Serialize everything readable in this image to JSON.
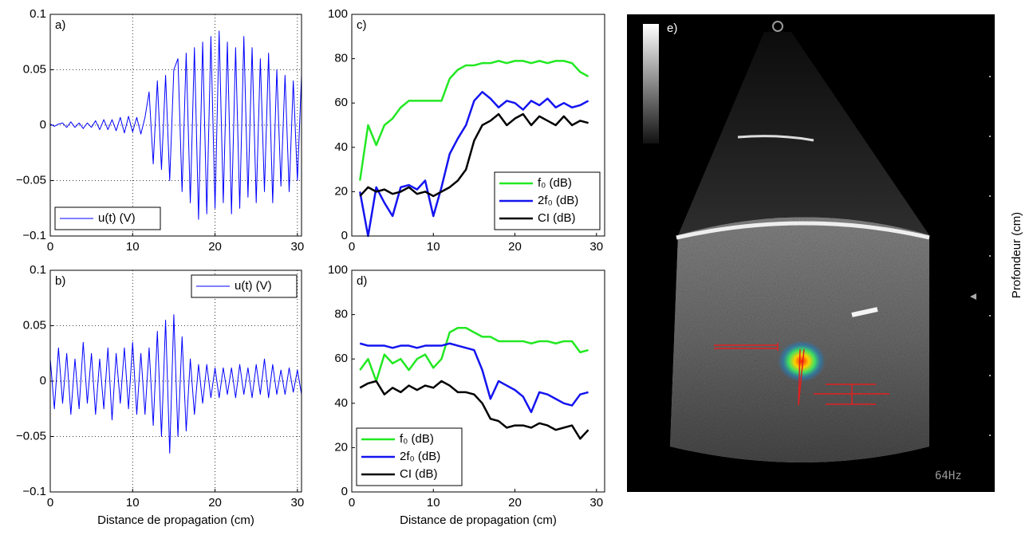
{
  "chart_data": [
    {
      "type": "signal",
      "panel_label": "a)",
      "legend": "lower left",
      "grid": true,
      "xlim": [
        0,
        30.5
      ],
      "xticks": [
        0,
        10,
        20,
        30
      ],
      "ylim": [
        -0.1,
        0.1
      ],
      "yticks": [
        {
          "value": -0.1,
          "label": "−0.1"
        },
        {
          "value": -0.05,
          "label": "−0.05"
        },
        0,
        0.05,
        0.1
      ],
      "x": [
        0,
        0.5,
        1,
        1.5,
        2,
        2.5,
        3,
        3.5,
        4,
        4.5,
        5,
        5.5,
        6,
        6.5,
        7,
        7.5,
        8,
        8.5,
        9,
        9.5,
        10,
        10.5,
        11,
        11.5,
        12,
        12.5,
        13,
        13.5,
        14,
        14.5,
        15,
        15.5,
        16,
        16.5,
        17,
        17.5,
        18,
        18.5,
        19,
        19.5,
        20,
        20.5,
        21,
        21.5,
        22,
        22.5,
        23,
        23.5,
        24,
        24.5,
        25,
        25.5,
        26,
        26.5,
        27,
        27.5,
        28,
        28.5,
        29,
        29.5,
        30,
        30.5
      ],
      "series": [
        {
          "name": "u(t) (V)",
          "color": "#0000ff",
          "values": [
            0.001,
            -0.001,
            0.001,
            0.002,
            -0.002,
            0.003,
            -0.002,
            0.002,
            -0.003,
            0.002,
            -0.002,
            0.004,
            -0.004,
            0.005,
            -0.004,
            0.005,
            -0.005,
            0.007,
            -0.007,
            0.008,
            -0.006,
            0.007,
            -0.008,
            0.007,
            0.03,
            -0.035,
            0.04,
            -0.04,
            0.045,
            -0.05,
            0.05,
            0.06,
            -0.06,
            0.065,
            -0.07,
            0.07,
            -0.085,
            0.075,
            -0.08,
            0.08,
            -0.075,
            0.085,
            -0.07,
            0.075,
            -0.08,
            0.07,
            -0.075,
            0.08,
            -0.065,
            0.07,
            -0.07,
            0.06,
            -0.06,
            0.065,
            -0.07,
            0.05,
            -0.055,
            0.045,
            -0.06,
            0.04,
            -0.05,
            0.045
          ]
        }
      ]
    },
    {
      "type": "signal",
      "panel_label": "b)",
      "legend": "upper right",
      "grid": true,
      "xlabel": "Distance de propagation (cm)",
      "xlim": [
        0,
        30.5
      ],
      "xticks": [
        0,
        10,
        20,
        30
      ],
      "ylim": [
        -0.1,
        0.1
      ],
      "yticks": [
        {
          "value": -0.1,
          "label": "−0.1"
        },
        {
          "value": -0.05,
          "label": "−0.05"
        },
        0,
        0.05,
        0.1
      ],
      "x": [
        0,
        0.5,
        1,
        1.5,
        2,
        2.5,
        3,
        3.5,
        4,
        4.5,
        5,
        5.5,
        6,
        6.5,
        7,
        7.5,
        8,
        8.5,
        9,
        9.5,
        10,
        10.5,
        11,
        11.5,
        12,
        12.5,
        13,
        13.5,
        14,
        14.5,
        15,
        15.5,
        16,
        16.5,
        17,
        17.5,
        18,
        18.5,
        19,
        19.5,
        20,
        20.5,
        21,
        21.5,
        22,
        22.5,
        23,
        23.5,
        24,
        24.5,
        25,
        25.5,
        26,
        26.5,
        27,
        27.5,
        28,
        28.5,
        29,
        29.5,
        30,
        30.5
      ],
      "series": [
        {
          "name": "u(t) (V)",
          "color": "#0000ff",
          "values": [
            0.02,
            -0.025,
            0.03,
            -0.02,
            0.025,
            -0.03,
            0.02,
            -0.025,
            0.035,
            -0.02,
            0.025,
            -0.03,
            0.02,
            -0.025,
            0.03,
            -0.035,
            0.025,
            -0.02,
            0.03,
            -0.025,
            0.035,
            -0.03,
            0.025,
            -0.03,
            0.03,
            -0.04,
            0.045,
            -0.05,
            0.055,
            -0.065,
            0.06,
            -0.05,
            0.04,
            -0.045,
            0.02,
            -0.03,
            0.015,
            -0.02,
            0.015,
            -0.015,
            0.012,
            -0.015,
            0.012,
            -0.012,
            0.012,
            -0.015,
            0.015,
            -0.012,
            0.012,
            -0.015,
            0.015,
            -0.012,
            0.02,
            -0.015,
            0.015,
            -0.012,
            0.01,
            -0.012,
            0.012,
            -0.01,
            0.01,
            -0.012
          ]
        }
      ]
    },
    {
      "type": "line",
      "panel_label": "c)",
      "legend": "lower right",
      "grid": false,
      "xlim": [
        0,
        31
      ],
      "xticks": [
        0,
        10,
        20,
        30
      ],
      "ylim": [
        0,
        100
      ],
      "yticks": [
        0,
        20,
        40,
        60,
        80,
        100
      ],
      "x": [
        1,
        2,
        3,
        4,
        5,
        6,
        7,
        8,
        9,
        10,
        11,
        12,
        13,
        14,
        15,
        16,
        17,
        18,
        19,
        20,
        21,
        22,
        23,
        24,
        25,
        26,
        27,
        28,
        29
      ],
      "series": [
        {
          "name": "f₀ (dB)",
          "color": "#22e822",
          "values": [
            25,
            50,
            41,
            50,
            53,
            58,
            61,
            61,
            61,
            61,
            61,
            71,
            75,
            77,
            77,
            78,
            78,
            79,
            78,
            79,
            79,
            78,
            79,
            78,
            79,
            79,
            78,
            74,
            72
          ]
        },
        {
          "name": "2f₀ (dB)",
          "color": "#1414f0",
          "values": [
            20,
            0,
            22,
            15,
            9,
            22,
            23,
            21,
            25,
            9,
            22,
            37,
            44,
            50,
            61,
            65,
            62,
            58,
            61,
            60,
            57,
            61,
            59,
            62,
            58,
            60,
            58,
            59,
            61
          ]
        },
        {
          "name": "CI (dB)",
          "color": "#000000",
          "values": [
            18,
            22,
            20,
            21,
            19,
            20,
            22,
            19,
            20,
            18,
            20,
            22,
            25,
            30,
            43,
            50,
            52,
            55,
            50,
            53,
            55,
            50,
            54,
            52,
            50,
            54,
            50,
            52,
            51
          ]
        }
      ]
    },
    {
      "type": "line",
      "panel_label": "d)",
      "legend": "lower left",
      "grid": false,
      "xlabel": "Distance de propagation (cm)",
      "xlim": [
        0,
        31
      ],
      "xticks": [
        0,
        10,
        20,
        30
      ],
      "ylim": [
        0,
        100
      ],
      "yticks": [
        0,
        20,
        40,
        60,
        80,
        100
      ],
      "x": [
        1,
        2,
        3,
        4,
        5,
        6,
        7,
        8,
        9,
        10,
        11,
        12,
        13,
        14,
        15,
        16,
        17,
        18,
        19,
        20,
        21,
        22,
        23,
        24,
        25,
        26,
        27,
        28,
        29
      ],
      "series": [
        {
          "name": "f₀ (dB)",
          "color": "#22e822",
          "values": [
            55,
            60,
            50,
            62,
            58,
            60,
            55,
            60,
            62,
            56,
            60,
            72,
            74,
            74,
            72,
            70,
            70,
            68,
            68,
            68,
            68,
            67,
            68,
            68,
            67,
            68,
            68,
            63,
            64
          ]
        },
        {
          "name": "2f₀ (dB)",
          "color": "#1414f0",
          "values": [
            67,
            66,
            66,
            66,
            65,
            66,
            66,
            65,
            66,
            66,
            66,
            67,
            66,
            65,
            64,
            55,
            42,
            50,
            48,
            46,
            43,
            36,
            45,
            44,
            42,
            40,
            39,
            44,
            45
          ]
        },
        {
          "name": "CI (dB)",
          "color": "#000000",
          "values": [
            47,
            49,
            50,
            44,
            47,
            45,
            48,
            46,
            48,
            47,
            50,
            48,
            45,
            45,
            44,
            40,
            33,
            32,
            29,
            30,
            30,
            29,
            31,
            30,
            28,
            29,
            30,
            24,
            28
          ]
        }
      ]
    }
  ],
  "image_panel": {
    "label": "e)",
    "frame_rate": "64Hz",
    "axis_label": "Profondeur (cm)"
  }
}
